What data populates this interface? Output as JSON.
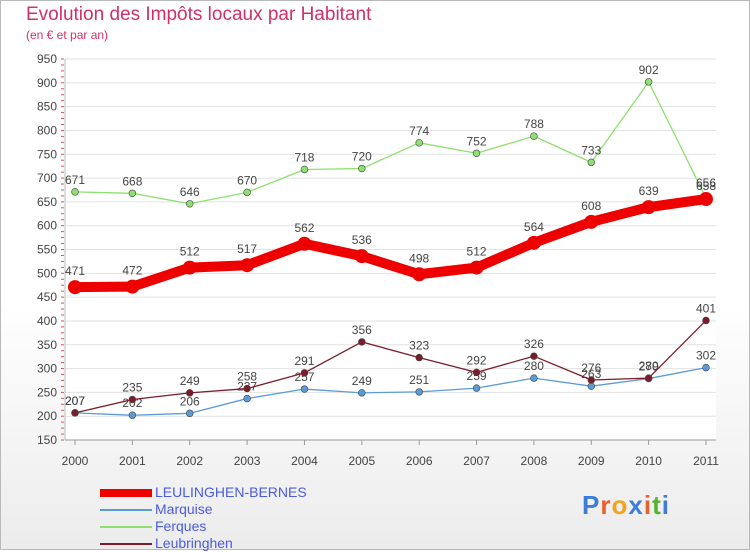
{
  "title": "Evolution des Impôts locaux par Habitant",
  "subtitle": "(en € et par an)",
  "logo": {
    "text": "Proxiti",
    "letter_colors": [
      "#3b7dd8",
      "#e8602c",
      "#f2a31c",
      "#3b7dd8",
      "#e8602c",
      "#58b030",
      "#3b7dd8"
    ]
  },
  "chart_data": {
    "type": "line",
    "title": "Evolution des Impôts locaux par Habitant",
    "subtitle": "(en € et par an)",
    "xlabel": "",
    "ylabel": "",
    "x": [
      "2000",
      "2001",
      "2002",
      "2003",
      "2004",
      "2005",
      "2006",
      "2007",
      "2008",
      "2009",
      "2010",
      "2011"
    ],
    "ylim": [
      150,
      950
    ],
    "yticks": [
      150,
      200,
      250,
      300,
      350,
      400,
      450,
      500,
      550,
      600,
      650,
      700,
      750,
      800,
      850,
      900,
      950
    ],
    "grid": "horizontal",
    "legend_position": "bottom-left",
    "series": [
      {
        "name": "LEULINGHEN-BERNES",
        "color": "#ee0000",
        "values": [
          471,
          472,
          512,
          517,
          562,
          536,
          498,
          512,
          564,
          608,
          639,
          656
        ],
        "labels": [
          "471",
          "472",
          "512",
          "517",
          "562",
          "536",
          "498",
          "512",
          "564",
          "608",
          "639",
          "656"
        ]
      },
      {
        "name": "Marquise",
        "color": "#5b9bd5",
        "values": [
          207,
          202,
          206,
          237,
          257,
          249,
          251,
          259,
          280,
          263,
          279,
          302
        ],
        "labels": [
          "207",
          "202",
          "206",
          "237",
          "257",
          "249",
          "251",
          "259",
          "280",
          "263",
          "279",
          "302"
        ]
      },
      {
        "name": "Ferques",
        "color": "#8ee070",
        "values": [
          671,
          668,
          646,
          670,
          718,
          720,
          774,
          752,
          788,
          733,
          902,
          658
        ],
        "labels": [
          "671",
          "668",
          "646",
          "670",
          "718",
          "720",
          "774",
          "752",
          "788",
          "733",
          "902",
          "658"
        ]
      },
      {
        "name": "Leubringhen",
        "color": "#7b1c2a",
        "values": [
          207,
          235,
          249,
          258,
          291,
          356,
          323,
          292,
          326,
          276,
          280,
          401
        ],
        "labels": [
          "207",
          "235",
          "249",
          "258",
          "291",
          "356",
          "323",
          "292",
          "326",
          "276",
          "280",
          "401"
        ]
      }
    ]
  }
}
